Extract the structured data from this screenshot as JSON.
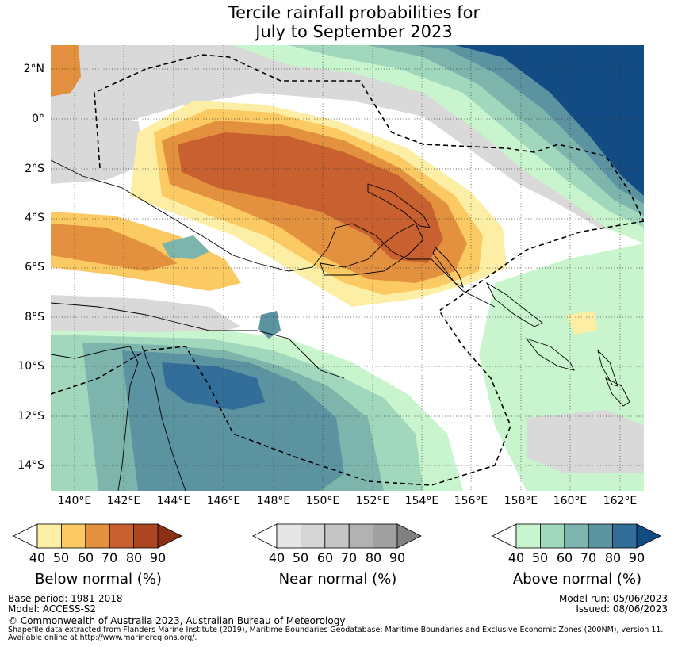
{
  "title": {
    "line1": "Tercile rainfall probabilities for",
    "line2": "July to September 2023"
  },
  "map": {
    "lat_labels": [
      "2°N",
      "0°",
      "2°S",
      "4°S",
      "6°S",
      "8°S",
      "10°S",
      "12°S",
      "14°S"
    ],
    "lon_labels": [
      "140°E",
      "142°E",
      "144°E",
      "146°E",
      "148°E",
      "150°E",
      "152°E",
      "154°E",
      "156°E",
      "158°E",
      "160°E",
      "162°E"
    ]
  },
  "colorbars": [
    {
      "title": "Below normal (%)",
      "ticks": [
        "40",
        "50",
        "60",
        "70",
        "80",
        "90"
      ],
      "colors": [
        "#ffffff",
        "#fdeea5",
        "#fbca63",
        "#e3913f",
        "#c9602f",
        "#ae4522",
        "#8a3016"
      ]
    },
    {
      "title": "Near normal (%)",
      "ticks": [
        "40",
        "50",
        "60",
        "70",
        "80",
        "90"
      ],
      "colors": [
        "#ffffff",
        "#e6e6e6",
        "#d6d6d6",
        "#c6c6c6",
        "#b2b2b2",
        "#a0a0a0",
        "#808080"
      ]
    },
    {
      "title": "Above normal (%)",
      "ticks": [
        "40",
        "50",
        "60",
        "70",
        "80",
        "90"
      ],
      "colors": [
        "#ffffff",
        "#c8f5cd",
        "#a1d7bd",
        "#7db5ad",
        "#5c93a0",
        "#336d9a",
        "#134b84"
      ]
    }
  ],
  "footer": {
    "base_period": "Base period: 1981-2018",
    "model": "Model: ACCESS-S2",
    "model_run": "Model run: 05/06/2023",
    "issued": "Issued: 08/06/2023",
    "copyright": "© Commonwealth of Australia 2023, Australian Bureau of Meteorology",
    "shapefile_line1": "Shapefile data extracted from Flanders Marine Institute (2019), Maritime Boundaries Geodatabase: Maritime Boundaries and Exclusive Economic Zones (200NM), version 11.",
    "shapefile_line2": "Available online at http://www.marineregions.org/."
  }
}
